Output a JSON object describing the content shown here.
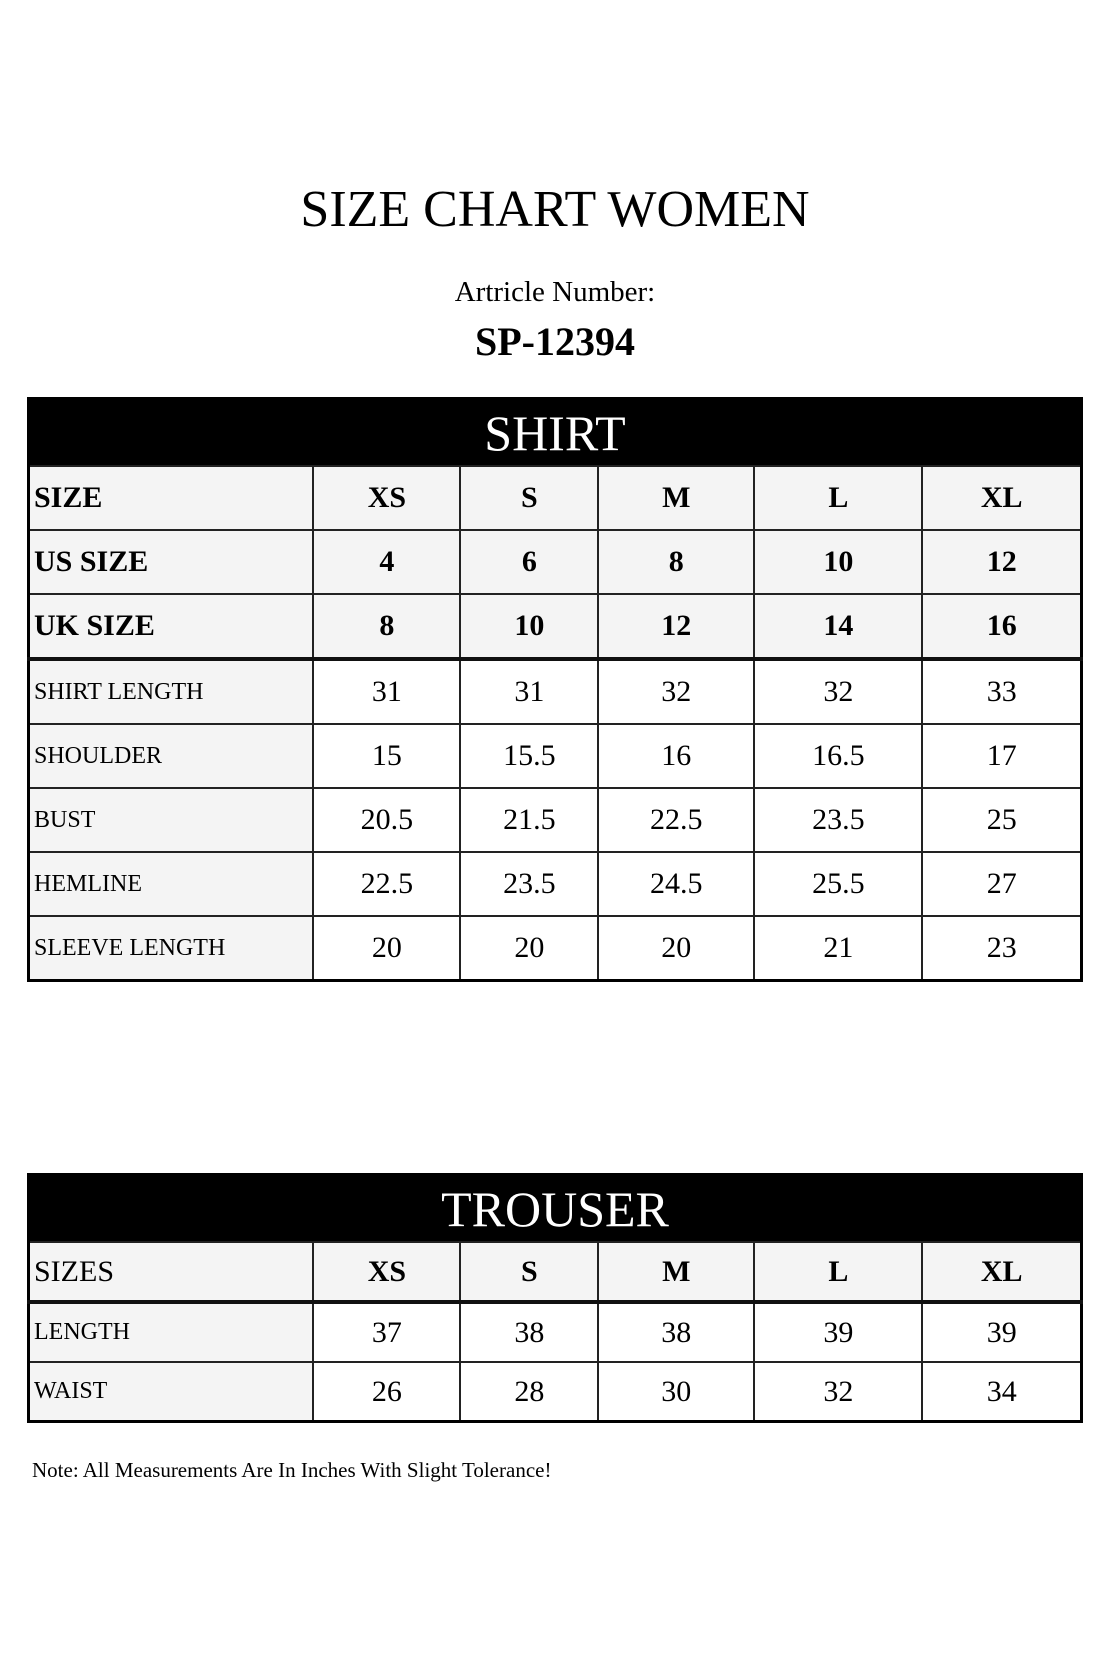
{
  "title": "SIZE CHART WOMEN",
  "article_label": "Artricle Number:",
  "article_number": "SP-12394",
  "shirt": {
    "heading": "SHIRT",
    "header_rows": [
      {
        "label": "SIZE",
        "values": [
          "XS",
          "S",
          "M",
          "L",
          "XL"
        ]
      },
      {
        "label": "US SIZE",
        "values": [
          "4",
          "6",
          "8",
          "10",
          "12"
        ]
      },
      {
        "label": "UK SIZE",
        "values": [
          "8",
          "10",
          "12",
          "14",
          "16"
        ]
      }
    ],
    "rows": [
      {
        "label": "SHIRT LENGTH",
        "values": [
          "31",
          "31",
          "32",
          "32",
          "33"
        ]
      },
      {
        "label": "SHOULDER",
        "values": [
          "15",
          "15.5",
          "16",
          "16.5",
          "17"
        ]
      },
      {
        "label": "BUST",
        "values": [
          "20.5",
          "21.5",
          "22.5",
          "23.5",
          "25"
        ]
      },
      {
        "label": "HEMLINE",
        "values": [
          "22.5",
          "23.5",
          "24.5",
          "25.5",
          "27"
        ]
      },
      {
        "label": "SLEEVE LENGTH",
        "values": [
          "20",
          "20",
          "20",
          "21",
          "23"
        ]
      }
    ]
  },
  "trouser": {
    "heading": "TROUSER",
    "header_rows": [
      {
        "label": "SIZES",
        "values": [
          "XS",
          "S",
          "M",
          "L",
          "XL"
        ]
      }
    ],
    "rows": [
      {
        "label": "LENGTH",
        "values": [
          "37",
          "38",
          "38",
          "39",
          "39"
        ]
      },
      {
        "label": "WAIST",
        "values": [
          "26",
          "28",
          "30",
          "32",
          "34"
        ]
      }
    ]
  },
  "note": "Note: All Measurements Are In Inches With Slight Tolerance!"
}
